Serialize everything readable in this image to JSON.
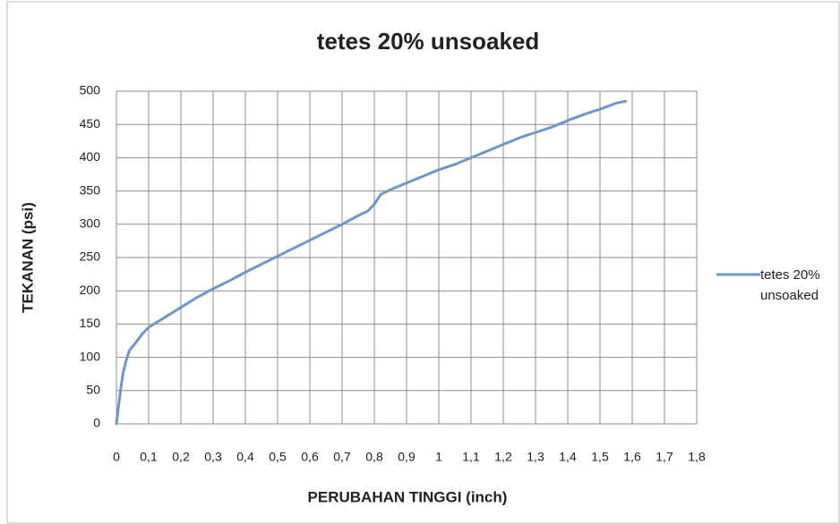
{
  "chart_data": {
    "type": "line",
    "title": "tetes 20% unsoaked",
    "xlabel": "PERUBAHAN TINGGI (inch)",
    "ylabel": "TEKANAN (psi)",
    "xlim": [
      0,
      1.8
    ],
    "ylim": [
      0,
      500
    ],
    "xticks": [
      0,
      {
        "value": 0.1,
        "label": "0,1"
      },
      {
        "value": 0.2,
        "label": "0,2"
      },
      {
        "value": 0.3,
        "label": "0,3"
      },
      {
        "value": 0.4,
        "label": "0,4"
      },
      {
        "value": 0.5,
        "label": "0,5"
      },
      {
        "value": 0.6,
        "label": "0,6"
      },
      {
        "value": 0.7,
        "label": "0,7"
      },
      {
        "value": 0.8,
        "label": "0,8"
      },
      {
        "value": 0.9,
        "label": "0,9"
      },
      1,
      {
        "value": 1.1,
        "label": "1,1"
      },
      {
        "value": 1.2,
        "label": "1,2"
      },
      {
        "value": 1.3,
        "label": "1,3"
      },
      {
        "value": 1.4,
        "label": "1,4"
      },
      {
        "value": 1.5,
        "label": "1,5"
      },
      {
        "value": 1.6,
        "label": "1,6"
      },
      {
        "value": 1.7,
        "label": "1,7"
      },
      {
        "value": 1.8,
        "label": "1,8"
      }
    ],
    "yticks": [
      0,
      50,
      100,
      150,
      200,
      250,
      300,
      350,
      400,
      450,
      500
    ],
    "grid": true,
    "legend": "right",
    "series": [
      {
        "name": "tetes 20% unsoaked",
        "color": "#7096c8",
        "x": [
          0,
          0.01,
          0.02,
          0.03,
          0.04,
          0.06,
          0.08,
          0.1,
          0.15,
          0.2,
          0.25,
          0.3,
          0.35,
          0.4,
          0.45,
          0.5,
          0.55,
          0.6,
          0.65,
          0.7,
          0.75,
          0.78,
          0.8,
          0.82,
          0.85,
          0.9,
          0.95,
          1.0,
          1.05,
          1.1,
          1.15,
          1.2,
          1.25,
          1.3,
          1.35,
          1.4,
          1.45,
          1.5,
          1.55,
          1.58
        ],
        "values": [
          0,
          40,
          75,
          95,
          110,
          122,
          135,
          145,
          160,
          175,
          190,
          203,
          215,
          228,
          240,
          252,
          264,
          276,
          288,
          300,
          313,
          320,
          330,
          345,
          352,
          362,
          372,
          382,
          390,
          400,
          410,
          420,
          430,
          438,
          446,
          456,
          465,
          473,
          482,
          485
        ]
      }
    ]
  }
}
